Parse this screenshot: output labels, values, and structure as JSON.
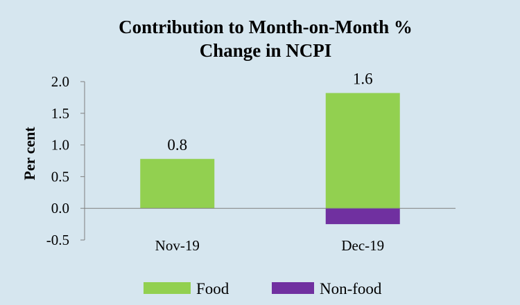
{
  "chart_data": {
    "type": "bar",
    "stacked": true,
    "title_lines": [
      "Contribution to Month-on-Month %",
      "Change in NCPI"
    ],
    "ylabel": "Per cent",
    "xlabel": "",
    "ylim": [
      -0.5,
      2.0
    ],
    "yticks": [
      2.0,
      1.5,
      1.0,
      0.5,
      0.0,
      -0.5
    ],
    "ytick_labels": [
      "2.0",
      "1.5",
      "1.0",
      "0.5",
      "0.0",
      "-0.5"
    ],
    "categories": [
      "Nov-19",
      "Dec-19"
    ],
    "series": [
      {
        "name": "Food",
        "color": "#92d050",
        "values": [
          0.78,
          1.82
        ]
      },
      {
        "name": "Non-food",
        "color": "#7030a0",
        "values": [
          0.0,
          -0.25
        ]
      }
    ],
    "total_labels": [
      "0.8",
      "1.6"
    ],
    "legend_position": "bottom",
    "background_color": "#d6e6ef"
  }
}
